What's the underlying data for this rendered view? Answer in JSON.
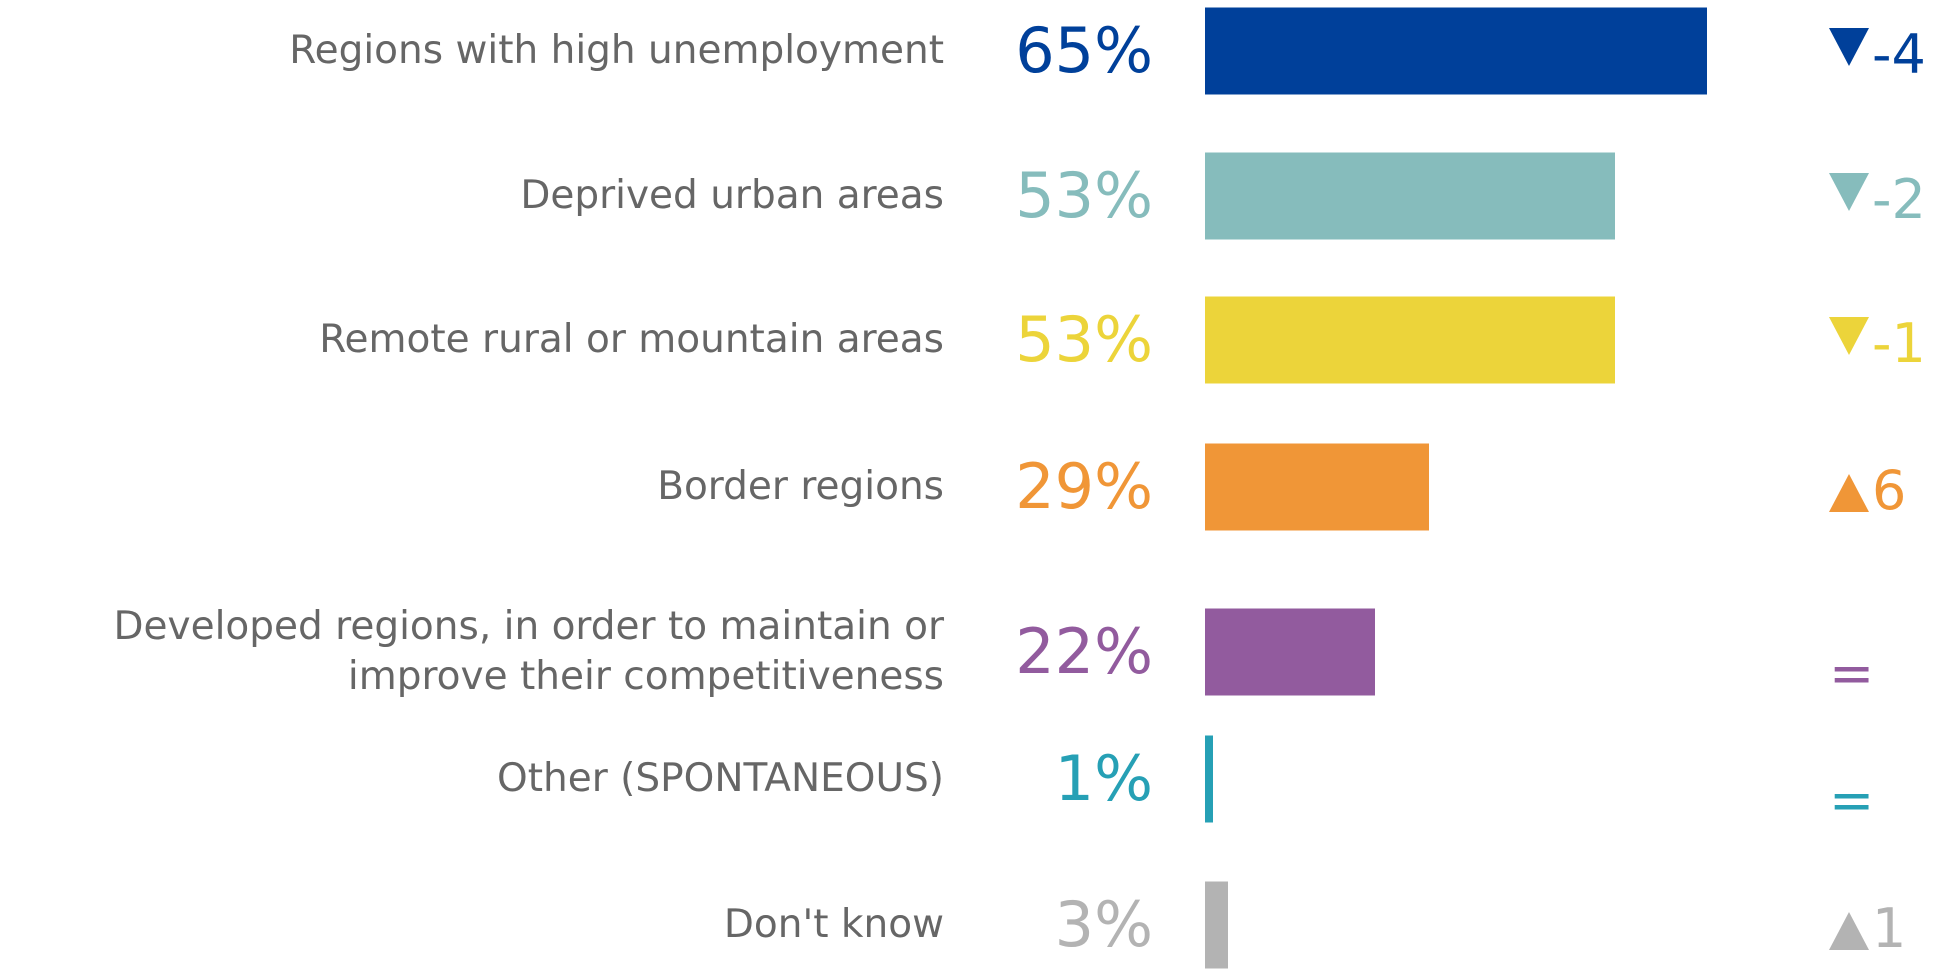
{
  "chart_data": {
    "type": "bar",
    "categories": [
      "Regions with high unemployment",
      "Deprived urban areas",
      "Remote rural or mountain areas",
      "Border regions",
      "Developed regions, in order to maintain or improve their competitiveness",
      "Other (SPONTANEOUS)",
      "Don't know"
    ],
    "values": [
      65,
      53,
      53,
      29,
      22,
      1,
      3
    ],
    "value_labels": [
      "65%",
      "53%",
      "53%",
      "29%",
      "22%",
      "1%",
      "3%"
    ],
    "colors": [
      "#00409a",
      "#86bcbc",
      "#ecd43a",
      "#f09637",
      "#925b9e",
      "#26a0b5",
      "#b3b3b3"
    ],
    "changes": [
      -4,
      -2,
      -1,
      6,
      0,
      0,
      1
    ],
    "change_labels": [
      "-4",
      "-2",
      "-1",
      "6",
      "=",
      "=",
      "1"
    ]
  }
}
